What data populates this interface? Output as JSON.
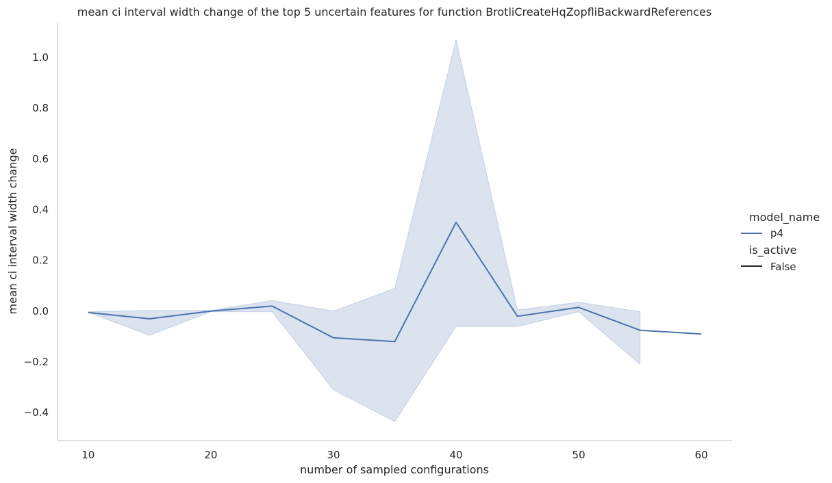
{
  "chart_data": {
    "type": "line",
    "title": "mean ci interval width change of the top 5 uncertain features for function BrotliCreateHqZopfliBackwardReferences",
    "xlabel": "number of sampled configurations",
    "ylabel": "mean ci interval width change",
    "xlim": [
      7.5,
      62.5
    ],
    "ylim": [
      -0.51,
      1.14
    ],
    "xticks": [
      10,
      20,
      30,
      40,
      50,
      60
    ],
    "xtick_labels": [
      "10",
      "20",
      "30",
      "40",
      "50",
      "60"
    ],
    "yticks": [
      -0.4,
      -0.2,
      0.0,
      0.2,
      0.4,
      0.6,
      0.8,
      1.0
    ],
    "ytick_labels": [
      "−0.4",
      "−0.2",
      "0.0",
      "0.2",
      "0.4",
      "0.6",
      "0.8",
      "1.0"
    ],
    "grid": false,
    "legend_position": "right",
    "legend": {
      "hue_title": "model_name",
      "hue_entries": [
        {
          "label": "p4",
          "color": "#4c72b0"
        }
      ],
      "style_title": "is_active",
      "style_entries": [
        {
          "label": "False",
          "color": "#262626"
        }
      ]
    },
    "series": [
      {
        "name": "p4",
        "color": "#4c72b0",
        "x": [
          10,
          15,
          20,
          25,
          30,
          35,
          40,
          45,
          50,
          55,
          60
        ],
        "y": [
          -0.005,
          -0.03,
          0.0,
          0.02,
          -0.105,
          -0.12,
          0.35,
          -0.02,
          0.015,
          -0.075,
          -0.09
        ],
        "ci_x": [
          10,
          15,
          20,
          25,
          30,
          35,
          40,
          45,
          50,
          55
        ],
        "ci_lower": [
          -0.005,
          -0.095,
          -0.002,
          -0.002,
          -0.31,
          -0.435,
          -0.06,
          -0.06,
          -0.002,
          -0.21
        ],
        "ci_upper": [
          -0.002,
          0.003,
          0.003,
          0.042,
          0.0,
          0.09,
          1.07,
          0.005,
          0.035,
          -0.002
        ]
      }
    ]
  }
}
